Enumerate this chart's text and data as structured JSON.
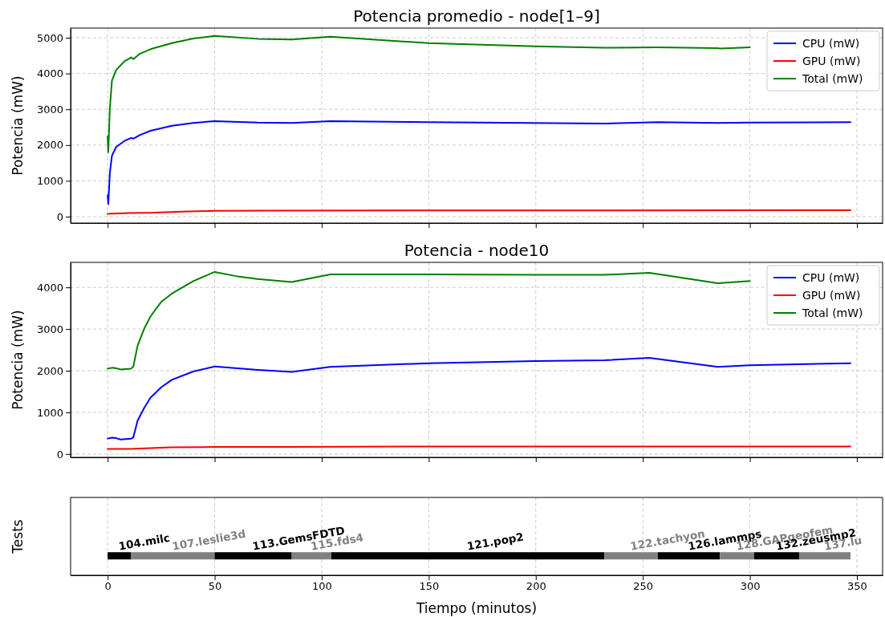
{
  "chart_data": [
    {
      "type": "line",
      "title": "Potencia promedio - node[1–9]",
      "ylabel": "Potencia (mW)",
      "xlim": [
        -17.3,
        362
      ],
      "xticks": [
        0,
        50,
        100,
        150,
        200,
        250,
        300,
        350
      ],
      "ylim": [
        -180,
        5270
      ],
      "yticks": [
        0,
        1000,
        2000,
        3000,
        4000,
        5000
      ],
      "tick_labels": "y",
      "grid": true,
      "legend": "top right",
      "line_style": "solid",
      "series": [
        {
          "name": "CPU (mW)",
          "color": "#0000ff",
          "x": [
            0,
            0.3,
            0.6,
            1,
            2,
            4,
            8,
            11,
            12,
            15,
            20,
            30,
            40,
            50,
            70,
            86,
            104,
            150,
            232,
            257,
            285,
            300,
            347
          ],
          "values": [
            600,
            350,
            700,
            1200,
            1700,
            1950,
            2120,
            2200,
            2180,
            2280,
            2400,
            2540,
            2620,
            2670,
            2630,
            2620,
            2670,
            2640,
            2600,
            2640,
            2620,
            2630,
            2640
          ]
        },
        {
          "name": "GPU (mW)",
          "color": "#ff0000",
          "x": [
            0,
            10,
            22,
            35,
            50,
            80,
            347
          ],
          "values": [
            80,
            100,
            110,
            140,
            160,
            170,
            180
          ]
        },
        {
          "name": "Total (mW)",
          "color": "#008000",
          "x": [
            0,
            0.3,
            0.6,
            1,
            2,
            4,
            8,
            11,
            12,
            15,
            20,
            30,
            40,
            50,
            70,
            86,
            104,
            150,
            200,
            232,
            257,
            285,
            286,
            300
          ],
          "values": [
            2250,
            1800,
            2300,
            3000,
            3800,
            4100,
            4350,
            4450,
            4400,
            4550,
            4680,
            4850,
            4980,
            5050,
            4970,
            4950,
            5030,
            4850,
            4760,
            4720,
            4730,
            4710,
            4700,
            4730
          ]
        }
      ]
    },
    {
      "type": "line",
      "title": "Potencia - node10",
      "ylabel": "Potencia (mW)",
      "xlim": [
        -17.3,
        362
      ],
      "xticks": [
        0,
        50,
        100,
        150,
        200,
        250,
        300,
        350
      ],
      "ylim": [
        -80,
        4600
      ],
      "yticks": [
        0,
        1000,
        2000,
        3000,
        4000
      ],
      "tick_labels": "y",
      "grid": true,
      "legend": "top right",
      "line_style": "solid",
      "series": [
        {
          "name": "CPU (mW)",
          "color": "#0000ff",
          "x": [
            0,
            2,
            4,
            6,
            11,
            12,
            14,
            17,
            20,
            25,
            30,
            40,
            50,
            70,
            86,
            104,
            150,
            200,
            232,
            253,
            285,
            300,
            347
          ],
          "values": [
            370,
            390,
            380,
            350,
            370,
            400,
            800,
            1100,
            1350,
            1600,
            1780,
            1980,
            2100,
            2020,
            1970,
            2090,
            2180,
            2230,
            2250,
            2310,
            2090,
            2130,
            2180
          ]
        },
        {
          "name": "GPU (mW)",
          "color": "#ff0000",
          "x": [
            0,
            11,
            20,
            30,
            50,
            86,
            150,
            347
          ],
          "values": [
            120,
            120,
            140,
            160,
            170,
            170,
            180,
            180
          ]
        },
        {
          "name": "Total (mW)",
          "color": "#008000",
          "x": [
            0,
            2,
            4,
            6,
            11,
            12,
            14,
            17,
            20,
            25,
            30,
            40,
            50,
            60,
            70,
            86,
            104,
            150,
            200,
            232,
            253,
            285,
            300
          ],
          "values": [
            2050,
            2070,
            2060,
            2030,
            2050,
            2100,
            2600,
            3000,
            3300,
            3650,
            3850,
            4150,
            4370,
            4270,
            4200,
            4130,
            4310,
            4310,
            4300,
            4300,
            4350,
            4100,
            4150
          ]
        }
      ]
    },
    {
      "type": "bar",
      "orientation": "horizontal",
      "stacked": true,
      "categories": [
        null
      ],
      "xlabel": "Tiempo (minutos)",
      "ylabel": "Tests",
      "xlim": [
        -17.3,
        362
      ],
      "xticks": [
        0,
        50,
        100,
        150,
        200,
        250,
        300,
        350
      ],
      "tick_labels": "x",
      "grid": "x",
      "series": [
        {
          "name": "104.milc",
          "color": "#000000",
          "values": [
            11
          ]
        },
        {
          "name": "107.leslie3d",
          "color": "#808080",
          "values": [
            39
          ]
        },
        {
          "name": "113.GemsFDTD",
          "color": "#000000",
          "values": [
            36
          ]
        },
        {
          "name": "115.fds4",
          "color": "#808080",
          "values": [
            18.5
          ]
        },
        {
          "name": "121.pop2",
          "color": "#000000",
          "values": [
            127.5
          ]
        },
        {
          "name": "122.tachyon",
          "color": "#808080",
          "values": [
            25
          ]
        },
        {
          "name": "126.lammps",
          "color": "#000000",
          "values": [
            29
          ]
        },
        {
          "name": "128.GAPgeofem",
          "color": "#808080",
          "values": [
            16
          ]
        },
        {
          "name": "132.zeusmp2",
          "color": "#000000",
          "values": [
            21
          ]
        },
        {
          "name": "137.lu",
          "color": "#808080",
          "values": [
            24
          ]
        }
      ]
    }
  ]
}
